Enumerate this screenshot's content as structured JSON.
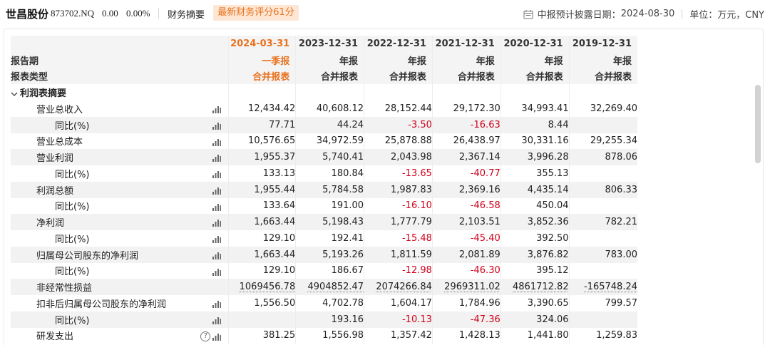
{
  "header": {
    "stock_name": "世昌股份",
    "stock_code": "873702.NQ",
    "price": "0.00",
    "change_pct": "0.00%",
    "tab_summary": "财务摘要",
    "score_badge": "最新财务评分61分",
    "disclosure_label": "中报预计披露日期：",
    "disclosure_date": "2024-08-30",
    "unit_label": "单位：万元，CNY",
    "calendar_icon": "calendar-icon"
  },
  "colors": {
    "accent": "#e8731f",
    "badge_bg": "#fde7d4",
    "negative": "#d0021b"
  },
  "table": {
    "header_rows": [
      {
        "label": "",
        "cells": [
          "2024-03-31",
          "2023-12-31",
          "2022-12-31",
          "2021-12-31",
          "2020-12-31",
          "2019-12-31"
        ]
      },
      {
        "label": "报告期",
        "cells": [
          "一季报",
          "年报",
          "年报",
          "年报",
          "年报",
          "年报"
        ]
      },
      {
        "label": "报表类型",
        "cells": [
          "合并报表",
          "合并报表",
          "合并报表",
          "合并报表",
          "合并报表",
          "合并报表"
        ]
      }
    ],
    "section_title": "利润表摘要",
    "rows": [
      {
        "label": "营业总收入",
        "v": [
          "12,434.42",
          "40,608.12",
          "28,152.44",
          "29,172.30",
          "34,993.41",
          "32,269.40"
        ]
      },
      {
        "label": "同比(%)",
        "v": [
          "77.71",
          "44.24",
          "-3.50",
          "-16.63",
          "8.44",
          ""
        ]
      },
      {
        "label": "营业总成本",
        "v": [
          "10,576.65",
          "34,972.59",
          "25,878.88",
          "26,438.97",
          "30,331.16",
          "29,255.34"
        ]
      },
      {
        "label": "营业利润",
        "v": [
          "1,955.37",
          "5,740.41",
          "2,043.98",
          "2,367.14",
          "3,996.28",
          "878.06"
        ]
      },
      {
        "label": "同比(%)",
        "v": [
          "133.13",
          "180.84",
          "-13.65",
          "-40.77",
          "355.13",
          ""
        ]
      },
      {
        "label": "利润总额",
        "v": [
          "1,955.44",
          "5,784.58",
          "1,987.83",
          "2,369.16",
          "4,435.14",
          "806.33"
        ]
      },
      {
        "label": "同比(%)",
        "v": [
          "133.64",
          "191.00",
          "-16.10",
          "-46.58",
          "450.04",
          ""
        ]
      },
      {
        "label": "净利润",
        "v": [
          "1,663.44",
          "5,198.43",
          "1,777.79",
          "2,103.51",
          "3,852.36",
          "782.21"
        ]
      },
      {
        "label": "同比(%)",
        "v": [
          "129.10",
          "192.41",
          "-15.48",
          "-45.40",
          "392.50",
          ""
        ]
      },
      {
        "label": "归属母公司股东的净利润",
        "v": [
          "1,663.44",
          "5,193.26",
          "1,811.59",
          "2,081.89",
          "3,876.82",
          "783.00"
        ]
      },
      {
        "label": "同比(%)",
        "v": [
          "129.10",
          "186.67",
          "-12.98",
          "-46.30",
          "395.12",
          ""
        ]
      },
      {
        "label": "非经常性损益",
        "v": [
          "1069456.78",
          "4904852.47",
          "2074266.84",
          "2969311.02",
          "4861712.82",
          "-165748.24"
        ]
      },
      {
        "label": "扣非后归属母公司股东的净利润",
        "v": [
          "1,556.50",
          "4,702.78",
          "1,604.17",
          "1,784.96",
          "3,390.65",
          "799.57"
        ]
      },
      {
        "label": "同比(%)",
        "v": [
          "",
          "193.16",
          "-10.13",
          "-47.36",
          "324.06",
          ""
        ]
      },
      {
        "label": "研发支出",
        "v": [
          "381.25",
          "1,556.98",
          "1,357.42",
          "1,428.13",
          "1,441.80",
          "1,259.83"
        ]
      }
    ]
  }
}
